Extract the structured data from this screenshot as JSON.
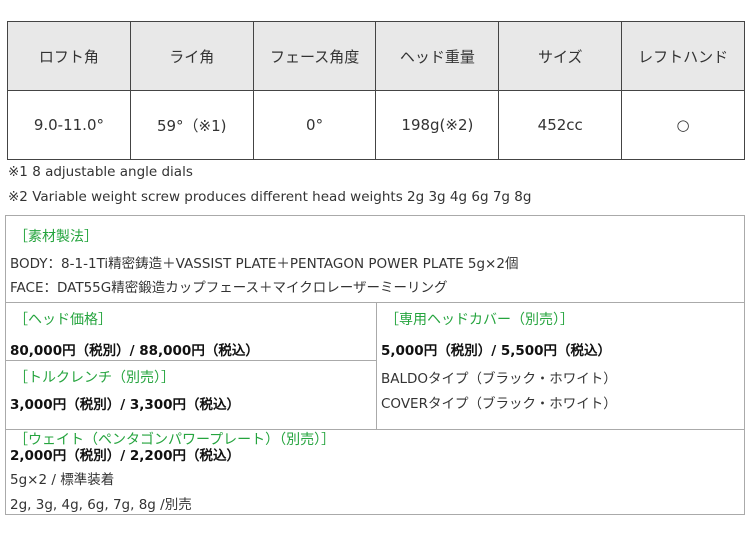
{
  "spec_table": {
    "headers": [
      "ロフト角",
      "ライ角",
      "フェース角度",
      "ヘッド重量",
      "サイズ",
      "レフトハンド"
    ],
    "values": [
      "9.0-11.0°",
      "59°（※1)",
      "0°",
      "198g(※2)",
      "452cc",
      "○"
    ]
  },
  "notes": [
    "※1  8 adjustable angle dials",
    "※2 Variable weight screw produces different head weights 2g 3g 4g 6g 7g 8g"
  ],
  "material": {
    "title": "［素材製法］",
    "lines": [
      "BODY：8-1-1Ti精密鋳造＋VASSIST PLATE＋PENTAGON POWER PLATE 5g×2個",
      "FACE：DAT55G精密鍛造カップフェース＋マイクロレーザーミーリング"
    ]
  },
  "head_price": {
    "title": "［ヘッド価格］",
    "price": "80,000円（税別）/ 88,000円（税込）"
  },
  "torque_wrench": {
    "title": "［トルクレンチ（別売）］",
    "price": "3,000円（税別）/ 3,300円（税込）"
  },
  "head_cover": {
    "title": "［専用ヘッドカバー（別売）］",
    "price": "5,000円（税別）/ 5,500円（税込）",
    "lines": [
      "BALDOタイプ（ブラック・ホワイト）",
      "COVERタイプ（ブラック・ホワイト）"
    ]
  },
  "weight": {
    "title": "［ウェイト（ペンタゴンパワープレート）（別売）］",
    "price": "2,000円（税別）/ 2,200円（税込）",
    "lines": [
      "5g×2 / 標準装着",
      "2g, 3g, 4g, 6g, 7g, 8g /別売"
    ]
  }
}
